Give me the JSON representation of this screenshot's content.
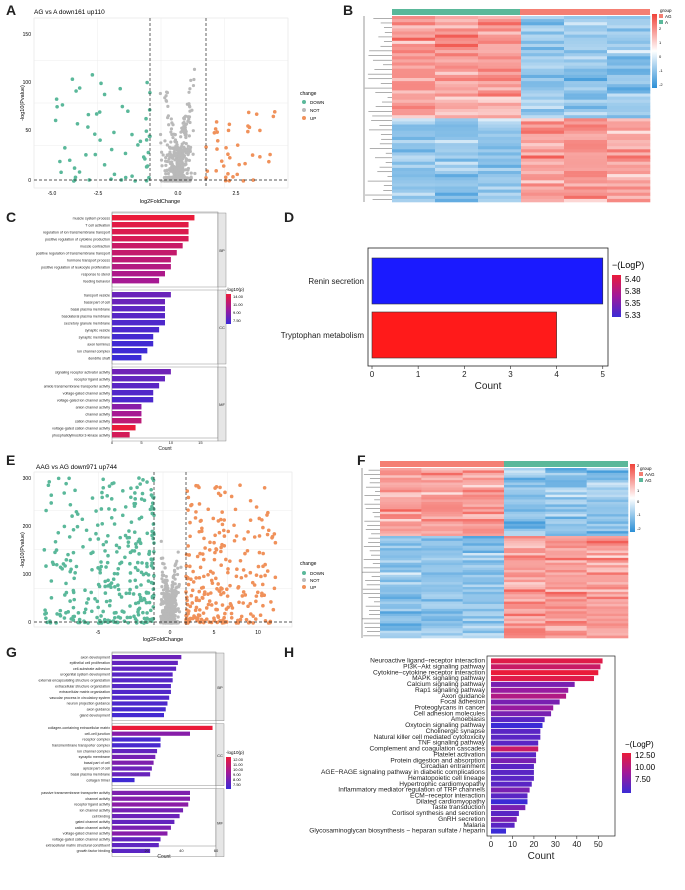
{
  "panels": {
    "A": "A",
    "B": "B",
    "C": "C",
    "D": "D",
    "E": "E",
    "F": "F",
    "G": "G",
    "H": "H"
  },
  "colors": {
    "down": "#5ab89a",
    "not": "#b9b9b9",
    "up": "#f0915a",
    "heat_high": "#f0433a",
    "heat_low": "#2c8fd6",
    "grid": "#ebebeb",
    "pathway_low": "#3b2bd6",
    "pathway_high": "#ea1b3a"
  },
  "volcano_A": {
    "title": "AG vs A down161 up110",
    "xlabel": "log2FoldChange",
    "ylabel": "-log10(Pvalue)",
    "xticks": [
      "-5.0",
      "-2.5",
      "0.0",
      "2.5"
    ],
    "yticks": [
      "0",
      "50",
      "100",
      "150"
    ],
    "legend": {
      "title": "change",
      "items": [
        "DOWN",
        "NOT",
        "UP"
      ]
    }
  },
  "heatmap_B": {
    "legend_title": "group",
    "groups": [
      "AG",
      "A"
    ],
    "scale": [
      "2",
      "1",
      "0",
      "-1",
      "-2"
    ]
  },
  "go_C": {
    "xlabel": "Count",
    "xticks": [
      "0",
      "5",
      "10",
      "15"
    ],
    "legend_title": "-log10(p)",
    "legend_values": [
      "14.00",
      "11.00",
      "9.00",
      "7.50"
    ],
    "groups": [
      "BP",
      "CC",
      "MF"
    ],
    "bp": [
      "muscle system process",
      "T cell activation",
      "regulation of ion transmembrane transport",
      "positive regulation of cytokine production",
      "muscle contraction",
      "positive regulation of transmembrane transport",
      "hormone transport process",
      "positive regulation of leukocyte proliferation",
      "response to sterol",
      "feeding behavior"
    ],
    "cc": [
      "transport vesicle",
      "basal part of cell",
      "basal plasma membrane",
      "basolateral plasma membrane",
      "secretory granule membrane",
      "synaptic vesicle",
      "synaptic membrane",
      "axon terminus",
      "ion channel complex",
      "dendrite shaft"
    ],
    "mf": [
      "signaling receptor activator activity",
      "receptor ligand activity",
      "amide transmembrane transporter activity",
      "voltage-gated channel activity",
      "voltage-gated ion channel activity",
      "anion channel activity",
      "channel activity",
      "cation channel activity",
      "voltage-gated cation channel activity",
      "phosphatidylinositol 3-kinase activity"
    ]
  },
  "chart_data": [
    {
      "type": "bar",
      "panel": "D",
      "orientation": "horizontal",
      "categories": [
        "Renin secretion",
        "Tryptophan metabolism"
      ],
      "values": [
        5,
        4
      ],
      "neg_log_p": [
        5.33,
        5.4
      ],
      "xlabel": "Count",
      "xlim": [
        0,
        5
      ],
      "xticks": [
        "0",
        "1",
        "2",
        "3",
        "4",
        "5"
      ],
      "legend": {
        "title": "−(LogP)",
        "ticks": [
          "5.40",
          "5.38",
          "5.35",
          "5.33"
        ]
      }
    },
    {
      "type": "bar",
      "panel": "C",
      "orientation": "horizontal",
      "xlim": [
        0,
        18
      ],
      "bp_values": [
        14,
        13,
        13,
        13,
        12,
        11,
        10,
        10,
        9,
        8
      ],
      "bp_p": [
        14,
        13.6,
        13.3,
        13.1,
        12.5,
        12.3,
        12,
        11.6,
        11.3,
        11
      ],
      "cc_values": [
        10,
        9,
        9,
        9,
        9,
        8,
        7,
        7,
        6,
        5
      ],
      "cc_p": [
        9,
        9,
        8.6,
        8.4,
        8.1,
        8,
        7.8,
        7.7,
        7.6,
        7.5
      ],
      "mf_values": [
        10,
        9,
        8,
        7,
        7,
        5,
        5,
        5,
        4,
        3
      ],
      "mf_p": [
        9.2,
        8.8,
        8.5,
        8.2,
        8,
        10,
        11,
        12,
        14,
        13
      ]
    },
    {
      "type": "bar",
      "panel": "G",
      "orientation": "horizontal",
      "xlim": [
        0,
        60
      ],
      "bp_values": [
        40,
        38,
        37,
        35,
        35,
        34,
        34,
        33,
        32,
        31,
        30
      ],
      "bp_p": [
        8.6,
        8.4,
        8.3,
        8.2,
        8.1,
        8.1,
        8,
        8,
        7.9,
        7.8,
        7.7
      ],
      "cc_values": [
        58,
        45,
        28,
        28,
        26,
        25,
        24,
        23,
        22,
        13
      ],
      "cc_p": [
        12,
        9.2,
        7.8,
        7.8,
        8.4,
        8.8,
        9,
        8.6,
        8.5,
        7.6
      ],
      "mf_values": [
        45,
        45,
        44,
        41,
        39,
        36,
        34,
        32,
        28,
        27,
        22
      ],
      "mf_p": [
        9,
        9.1,
        9.3,
        8.8,
        8.6,
        8.4,
        8.9,
        9.2,
        8.4,
        8.3,
        8.2
      ]
    },
    {
      "type": "bar",
      "panel": "H",
      "orientation": "horizontal",
      "xlim": [
        0,
        55
      ],
      "xticks": [
        "0",
        "10",
        "20",
        "30",
        "40",
        "50"
      ],
      "xlabel": "Count",
      "categories": [
        "Neuroactive ligand−receptor interaction",
        "PI3K−Akt signaling pathway",
        "Cytokine−cytokine receptor interaction",
        "MAPK signaling pathway",
        "Calcium signaling pathway",
        "Rap1 signaling pathway",
        "Axon guidance",
        "Focal adhesion",
        "Proteoglycans in cancer",
        "Cell adhesion molecules",
        "Amoebiasis",
        "Oxytocin signaling pathway",
        "Cholinergic synapse",
        "Natural killer cell mediated cytotoxicity",
        "TNF signaling pathway",
        "Complement and coagulation cascades",
        "Platelet activation",
        "Protein digestion and absorption",
        "Circadian entrainment",
        "AGE−RAGE signaling pathway in diabetic complications",
        "Hematopoietic cell lineage",
        "Hypertrophic cardiomyopathy",
        "Inflammatory mediator regulation of TRP channels",
        "ECM−receptor interaction",
        "Dilated cardiomyopathy",
        "Taste transduction",
        "Cortisol synthesis and secretion",
        "GnRH secretion",
        "Malaria",
        "Glycosaminoglycan biosynthesis − heparan sulfate / heparin"
      ],
      "values": [
        52,
        51,
        50,
        48,
        39,
        36,
        35,
        32,
        29,
        28,
        25,
        24,
        23,
        23,
        22,
        22,
        21,
        21,
        20,
        20,
        20,
        19,
        18,
        17,
        17,
        16,
        13,
        12,
        11,
        7
      ],
      "neg_log_p": [
        13,
        12,
        13.5,
        13,
        9,
        10,
        11,
        9,
        10,
        9,
        8,
        7,
        8,
        8,
        8,
        12,
        8,
        9,
        8,
        8,
        8,
        8,
        9,
        8,
        7,
        9,
        8,
        9,
        8,
        7
      ],
      "legend": {
        "title": "−(LogP)",
        "ticks": [
          "12.50",
          "10.00",
          "7.50"
        ]
      }
    }
  ],
  "volcano_E": {
    "title": "AAG vs AG down971 up744",
    "xlabel": "log2FoldChange",
    "ylabel": "-log10(Pvalue)",
    "xticks": [
      "-5",
      "0",
      "5",
      "10"
    ],
    "yticks": [
      "0",
      "100",
      "200",
      "300"
    ],
    "legend": {
      "title": "change",
      "items": [
        "DOWN",
        "NOT",
        "UP"
      ]
    }
  },
  "heatmap_F": {
    "legend_title": "group",
    "groups": [
      "AAG",
      "AG"
    ],
    "scale": [
      "2",
      "1",
      "0",
      "-1",
      "-2"
    ]
  },
  "go_G": {
    "xlabel": "Count",
    "xticks": [
      "0",
      "20",
      "40",
      "60"
    ],
    "legend_title": "-log10(p)",
    "legend_values": [
      "12.00",
      "11.00",
      "10.00",
      "9.00",
      "8.00",
      "7.50"
    ],
    "groups": [
      "BP",
      "CC",
      "MF"
    ],
    "bp": [
      "axon development",
      "epithelial cell proliferation",
      "cell-substrate adhesion",
      "urogenital system development",
      "external encapsulating structure organization",
      "extracellular structure organization",
      "extracellular matrix organization",
      "vascular process in circulatory system",
      "neuron projection guidance",
      "axon guidance",
      "gland development"
    ],
    "cc": [
      "collagen-containing extracellular matrix",
      "cell-cell junction",
      "receptor complex",
      "transmembrane transporter complex",
      "ion channel complex",
      "synaptic membrane",
      "basal part of cell",
      "apical part of cell",
      "basal plasma membrane",
      "collagen trimer"
    ],
    "mf": [
      "passive transmembrane transporter activity",
      "channel activity",
      "receptor ligand activity",
      "ion channel activity",
      "cell binding",
      "gated channel activity",
      "cation channel activity",
      "voltage-gated channel activity",
      "voltage-gated cation channel activity",
      "extracellular matrix structural constituent",
      "growth factor binding"
    ]
  }
}
